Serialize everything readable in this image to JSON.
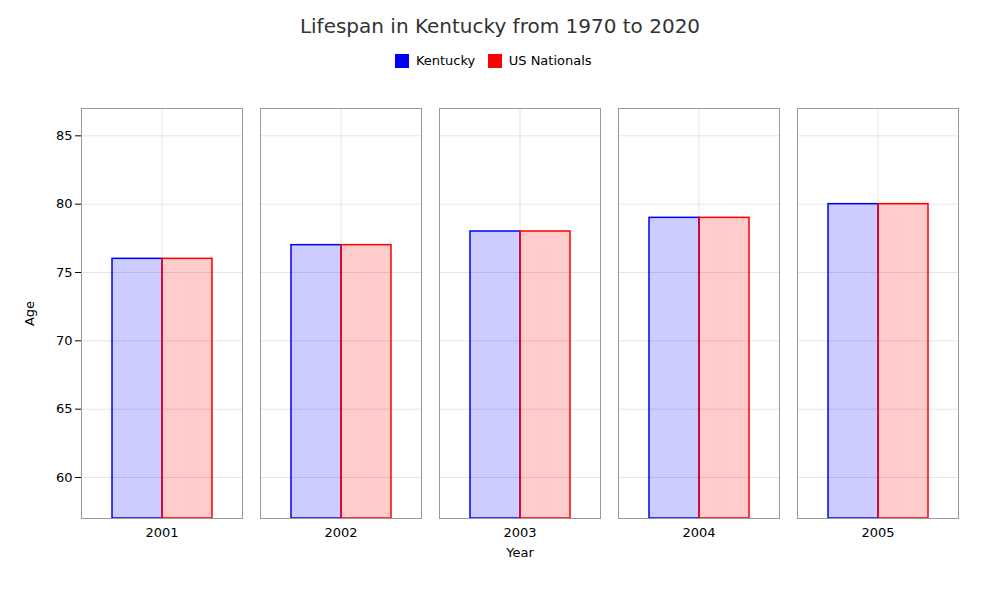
{
  "chart_data": {
    "type": "bar",
    "title": "Lifespan in Kentucky from 1970 to 2020",
    "xlabel": "Year",
    "ylabel": "Age",
    "categories": [
      "2001",
      "2002",
      "2003",
      "2004",
      "2005"
    ],
    "series": [
      {
        "name": "Kentucky",
        "color": "#0000ff",
        "values": [
          76,
          77,
          78,
          79,
          80
        ]
      },
      {
        "name": "US Nationals",
        "color": "#ff0000",
        "values": [
          76,
          77,
          78,
          79,
          80
        ]
      }
    ],
    "ylim": [
      57,
      87
    ],
    "yticks": [
      60,
      65,
      70,
      75,
      80,
      85
    ],
    "grid": true,
    "legend": "top"
  }
}
